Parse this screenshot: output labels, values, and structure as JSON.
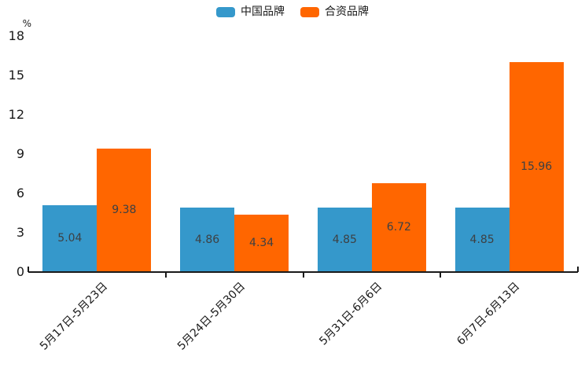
{
  "chart_data": {
    "type": "bar",
    "title": "",
    "categories": [
      "5月17日-5月23日",
      "5月24日-5月30日",
      "5月31日-6月6日",
      "6月7日-6月13日"
    ],
    "series": [
      {
        "name": "中国品牌",
        "color": "#3598cb",
        "values": [
          5.04,
          4.86,
          4.85,
          4.85
        ]
      },
      {
        "name": "合资品牌",
        "color": "#ff6600",
        "values": [
          9.38,
          4.34,
          6.72,
          15.96
        ]
      }
    ],
    "xlabel": "",
    "ylabel": "%",
    "ylim": [
      0,
      18
    ],
    "yticks": [
      0,
      3,
      6,
      9,
      12,
      15,
      18
    ],
    "grid": false,
    "legend_position": "top-center",
    "bar_label_color": "#3d4043",
    "axis_color": "#1a1a1a"
  }
}
